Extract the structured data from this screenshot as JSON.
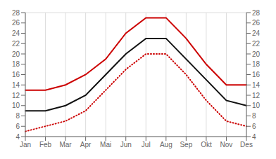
{
  "chart_data": {
    "type": "line",
    "categories": [
      "Jan",
      "Feb",
      "Mar",
      "Apr",
      "Mai",
      "Jun",
      "Jul",
      "Aug",
      "Sep",
      "Okt",
      "Nov",
      "Des"
    ],
    "series": [
      {
        "color": "#cc0000",
        "line_style": "solid",
        "values": [
          13,
          13,
          14,
          16,
          19,
          24,
          27,
          27,
          23,
          18,
          14,
          14
        ]
      },
      {
        "color": "#111111",
        "line_style": "solid",
        "values": [
          9,
          9,
          10,
          12,
          16,
          20,
          23,
          23,
          19,
          15,
          11,
          10
        ]
      },
      {
        "color": "#cc0000",
        "line_style": "dotted",
        "values": [
          5,
          6,
          7,
          9,
          13,
          17,
          20,
          20,
          16,
          11,
          7,
          6
        ]
      }
    ],
    "ylim": [
      4,
      28
    ],
    "yticks": [
      4,
      6,
      8,
      10,
      12,
      14,
      16,
      18,
      20,
      22,
      24,
      26,
      28
    ],
    "y2lim": [
      4,
      28
    ],
    "y2ticks": [
      4,
      6,
      8,
      10,
      12,
      14,
      16,
      18,
      20,
      22,
      24,
      26,
      28
    ],
    "grid": true
  }
}
